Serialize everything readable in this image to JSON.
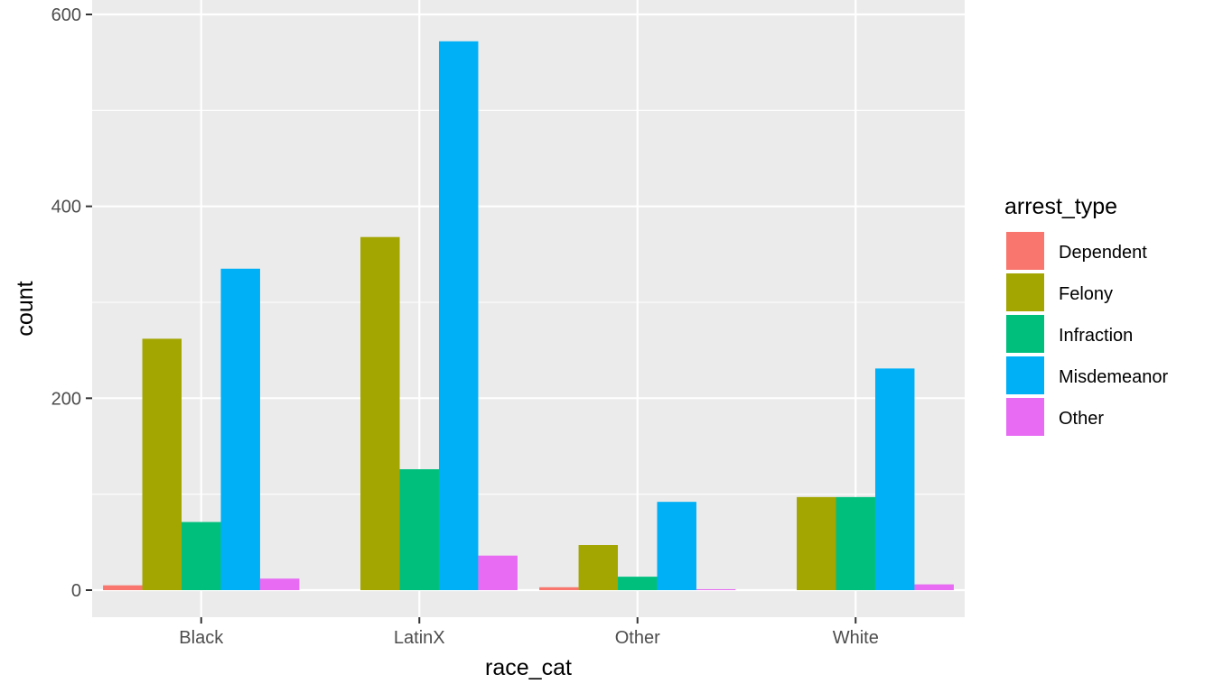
{
  "chart_data": {
    "type": "bar",
    "title": "",
    "xlabel": "race_cat",
    "ylabel": "count",
    "ylim": [
      -28,
      600
    ],
    "yticks": [
      0,
      200,
      400,
      600
    ],
    "grid": true,
    "legend_position": "right",
    "legend_title": "arrest_type",
    "categories": [
      "Black",
      "LatinX",
      "Other",
      "White"
    ],
    "series": [
      {
        "name": "Dependent",
        "color": "#F8766D",
        "values": [
          5,
          0,
          3,
          0
        ]
      },
      {
        "name": "Felony",
        "color": "#A3A500",
        "values": [
          262,
          368,
          47,
          97
        ]
      },
      {
        "name": "Infraction",
        "color": "#00BF7D",
        "values": [
          71,
          126,
          14,
          97
        ]
      },
      {
        "name": "Misdemeanor",
        "color": "#00B0F6",
        "values": [
          335,
          572,
          92,
          231
        ]
      },
      {
        "name": "Other",
        "color": "#E76BF3",
        "values": [
          12,
          36,
          1,
          6
        ]
      }
    ],
    "panel_background": "#EBEBEB",
    "grid_color": "#FFFFFF"
  }
}
